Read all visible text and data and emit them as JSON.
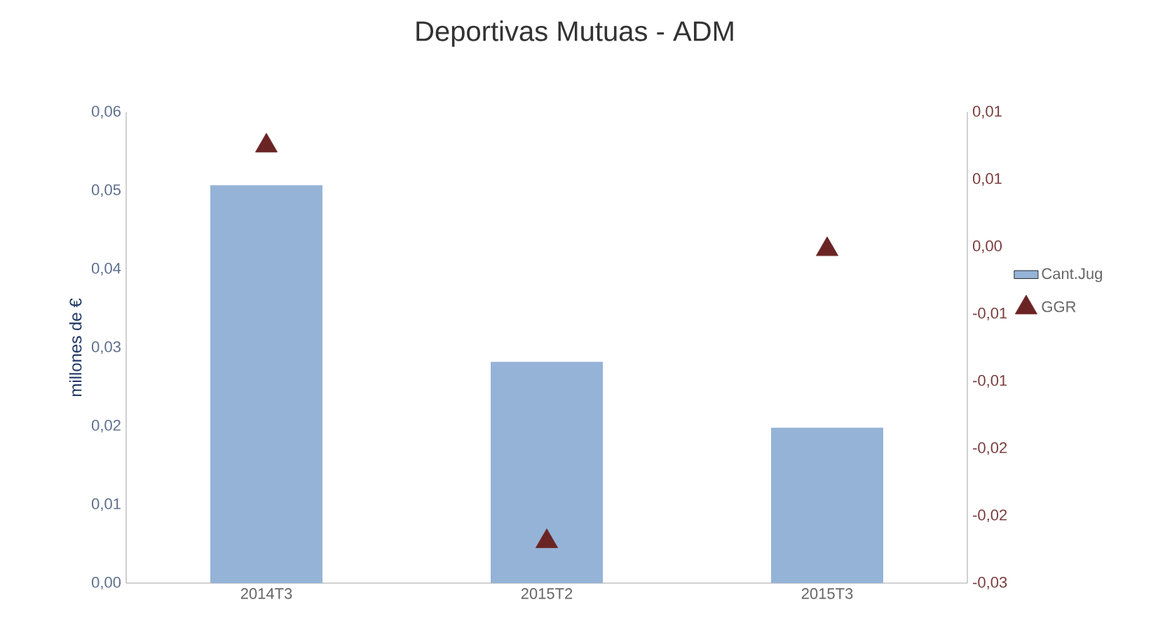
{
  "chart_data": {
    "type": "bar",
    "title": "Deportivas Mutuas - ADM",
    "ylabel": "millones de €",
    "categories": [
      "2014T3",
      "2015T2",
      "2015T3"
    ],
    "series": [
      {
        "name": "Cant.Jug",
        "color": "#95b3d7",
        "values": [
          0.0507,
          0.0282,
          0.0198
        ]
      },
      {
        "name": "GGR",
        "type": "scatter",
        "axis": "y2",
        "color": "#6b2424",
        "marker": "triangle",
        "values": [
          0.0075,
          -0.0219,
          -0.0002
        ]
      }
    ],
    "ylim": [
      0,
      0.06
    ],
    "yticks": [
      {
        "value": 0,
        "label": "0,00"
      },
      {
        "value": 0.01,
        "label": "0,01"
      },
      {
        "value": 0.02,
        "label": "0,02"
      },
      {
        "value": 0.03,
        "label": "0,03"
      },
      {
        "value": 0.04,
        "label": "0,04"
      },
      {
        "value": 0.05,
        "label": "0,05"
      },
      {
        "value": 0.06,
        "label": "0,06"
      }
    ],
    "y2lim": [
      -0.025,
      0.01
    ],
    "y2ticks": [
      {
        "value": -0.025,
        "label": "-0,03"
      },
      {
        "value": -0.02,
        "label": "-0,02"
      },
      {
        "value": -0.015,
        "label": "-0,02"
      },
      {
        "value": -0.01,
        "label": "-0,01"
      },
      {
        "value": -0.005,
        "label": "-0,01"
      },
      {
        "value": 0,
        "label": "0,00"
      },
      {
        "value": 0.005,
        "label": "0,01"
      },
      {
        "value": 0.01,
        "label": "0,01"
      }
    ],
    "legend": "right",
    "grid": false
  }
}
